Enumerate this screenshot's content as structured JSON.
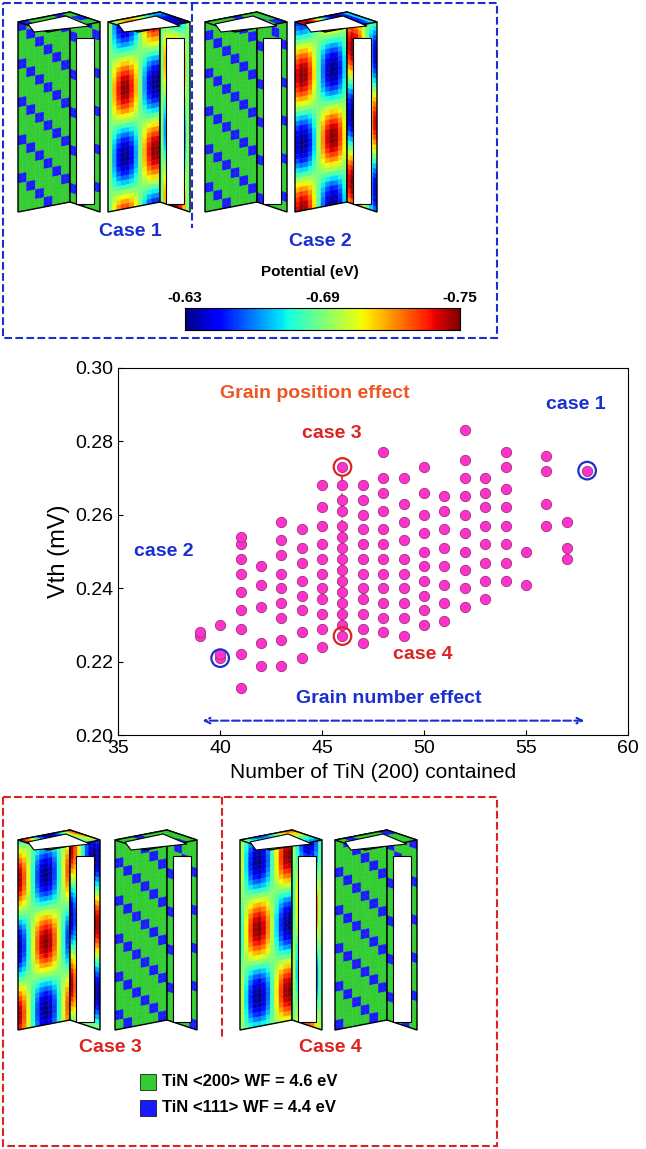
{
  "chart_data": {
    "type": "scatter",
    "x_label": "Number of TiN (200) contained",
    "y_label": "Vth (mV)",
    "color": "#ff33cc",
    "marker": "o",
    "x": [
      39,
      39,
      40,
      40,
      40,
      41,
      41,
      41,
      41,
      41,
      41,
      41,
      41,
      41,
      42,
      42,
      42,
      42,
      42,
      43,
      43,
      43,
      43,
      43,
      43,
      43,
      43,
      43,
      44,
      44,
      44,
      44,
      44,
      44,
      44,
      44,
      45,
      45,
      45,
      45,
      45,
      45,
      45,
      45,
      45,
      45,
      45,
      46,
      46,
      46,
      46,
      46,
      46,
      46,
      46,
      46,
      46,
      46,
      46,
      46,
      46,
      46,
      47,
      47,
      47,
      47,
      47,
      47,
      47,
      47,
      47,
      47,
      47,
      47,
      48,
      48,
      48,
      48,
      48,
      48,
      48,
      48,
      48,
      48,
      48,
      48,
      49,
      49,
      49,
      49,
      49,
      49,
      49,
      49,
      49,
      49,
      50,
      50,
      50,
      50,
      50,
      50,
      50,
      50,
      50,
      50,
      51,
      51,
      51,
      51,
      51,
      51,
      51,
      51,
      52,
      52,
      52,
      52,
      52,
      52,
      52,
      52,
      52,
      52,
      53,
      53,
      53,
      53,
      53,
      53,
      53,
      53,
      54,
      54,
      54,
      54,
      54,
      54,
      54,
      54,
      55,
      55,
      56,
      56,
      56,
      56,
      57,
      57,
      57,
      58
    ],
    "values": [
      0.227,
      0.228,
      0.221,
      0.23,
      0.222,
      0.213,
      0.222,
      0.229,
      0.234,
      0.239,
      0.244,
      0.248,
      0.252,
      0.254,
      0.219,
      0.225,
      0.235,
      0.241,
      0.246,
      0.219,
      0.226,
      0.232,
      0.236,
      0.24,
      0.244,
      0.249,
      0.253,
      0.258,
      0.221,
      0.228,
      0.234,
      0.238,
      0.242,
      0.247,
      0.251,
      0.256,
      0.224,
      0.229,
      0.233,
      0.237,
      0.24,
      0.244,
      0.248,
      0.252,
      0.257,
      0.262,
      0.268,
      0.227,
      0.23,
      0.233,
      0.236,
      0.239,
      0.242,
      0.245,
      0.248,
      0.251,
      0.254,
      0.257,
      0.261,
      0.264,
      0.268,
      0.273,
      0.225,
      0.229,
      0.233,
      0.237,
      0.24,
      0.244,
      0.248,
      0.252,
      0.256,
      0.26,
      0.264,
      0.268,
      0.228,
      0.232,
      0.236,
      0.24,
      0.244,
      0.248,
      0.252,
      0.256,
      0.261,
      0.266,
      0.27,
      0.277,
      0.227,
      0.232,
      0.236,
      0.24,
      0.244,
      0.248,
      0.253,
      0.258,
      0.263,
      0.27,
      0.23,
      0.234,
      0.238,
      0.242,
      0.246,
      0.25,
      0.255,
      0.26,
      0.266,
      0.273,
      0.231,
      0.236,
      0.241,
      0.246,
      0.251,
      0.256,
      0.261,
      0.265,
      0.235,
      0.24,
      0.245,
      0.25,
      0.255,
      0.26,
      0.265,
      0.27,
      0.275,
      0.283,
      0.237,
      0.242,
      0.247,
      0.252,
      0.257,
      0.262,
      0.266,
      0.27,
      0.242,
      0.247,
      0.252,
      0.257,
      0.262,
      0.267,
      0.273,
      0.277,
      0.241,
      0.25,
      0.257,
      0.263,
      0.272,
      0.276,
      0.248,
      0.251,
      0.258,
      0.272
    ],
    "xlim": [
      35,
      60
    ],
    "xticks": [
      35,
      40,
      45,
      50,
      55,
      60
    ],
    "ylim": [
      0.2,
      0.3
    ],
    "yticks": [
      {
        "value": 0.2,
        "label": "0.20"
      },
      0.22,
      0.24,
      0.26,
      0.28,
      {
        "value": 0.3,
        "label": "0.30"
      }
    ],
    "grid": false,
    "highlights": [
      {
        "label": "case 1",
        "x": 58,
        "y": 0.272,
        "color": "#1a2fd0"
      },
      {
        "label": "case 2",
        "x": 40,
        "y": 0.221,
        "color": "#1a2fd0"
      },
      {
        "label": "case 3",
        "x": 46,
        "y": 0.273,
        "color": "#dd2222"
      },
      {
        "label": "case 4",
        "x": 46,
        "y": 0.227,
        "color": "#dd2222"
      }
    ],
    "annotations": [
      {
        "text": "Grain position effect",
        "color": "#ee5522"
      },
      {
        "text": "Grain number effect",
        "color": "#1a2fd0"
      }
    ]
  },
  "top_panel": {
    "cases": [
      {
        "label": "Case 1",
        "color": "#1a2fd0"
      },
      {
        "label": "Case 2",
        "color": "#1a2fd0"
      }
    ],
    "colorbar": {
      "label": "Potential (eV)",
      "range": [
        -0.63,
        -0.75
      ],
      "ticks": [
        -0.63,
        -0.69,
        -0.75
      ]
    }
  },
  "bottom_panel": {
    "cases": [
      {
        "label": "Case 3",
        "color": "#dd2222"
      },
      {
        "label": "Case 4",
        "color": "#dd2222"
      }
    ],
    "legend": [
      {
        "label": "TiN <200> WF = 4.6 eV",
        "color": "#33cc33"
      },
      {
        "label": "TiN <111> WF = 4.4 eV",
        "color": "#1a1aff"
      }
    ]
  }
}
